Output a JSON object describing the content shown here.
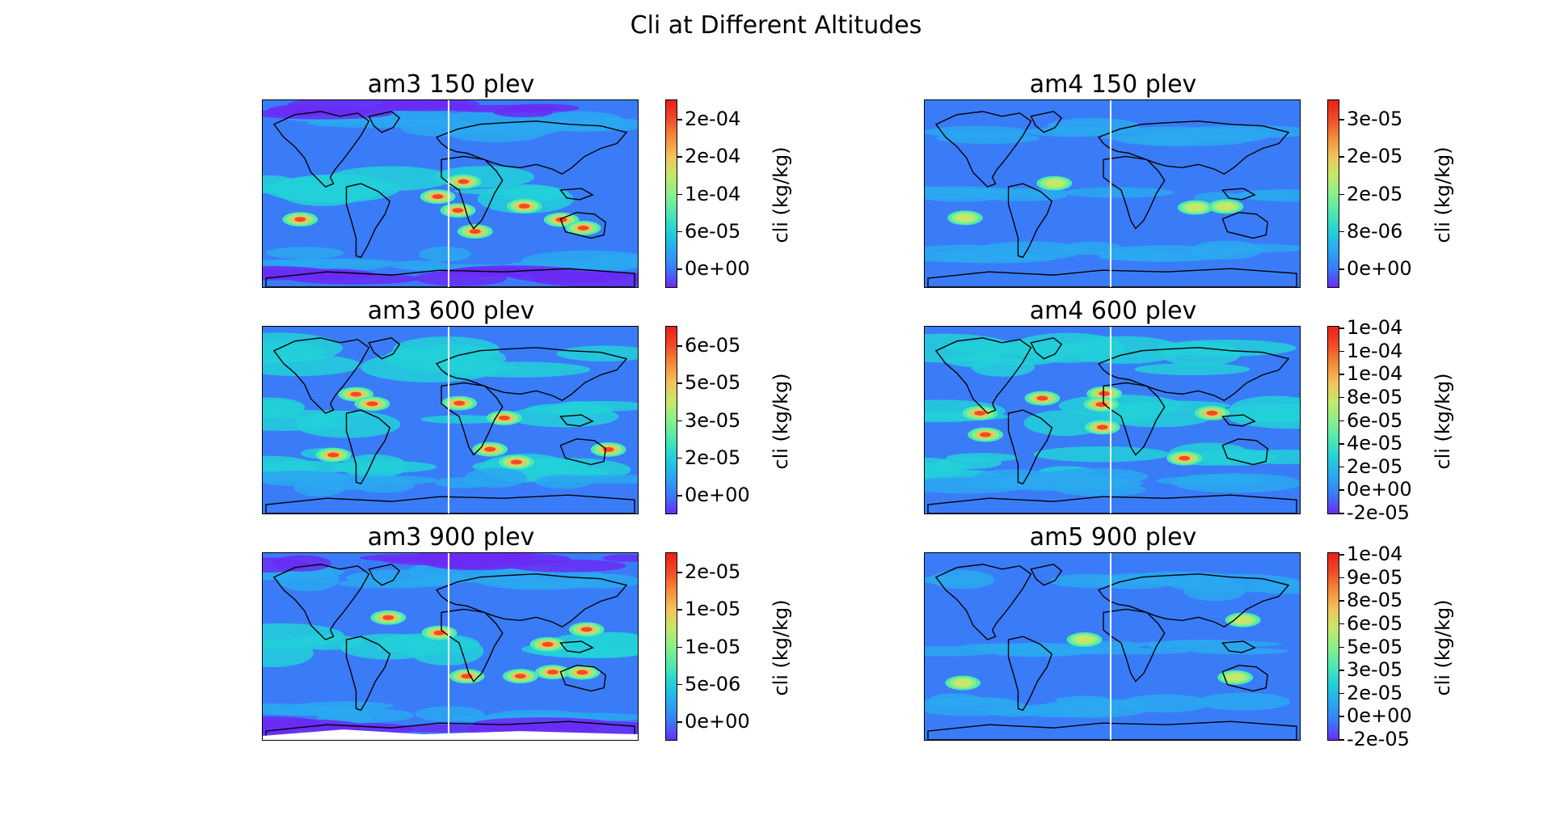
{
  "figure": {
    "title": "Cli at Different Altitudes"
  },
  "colors": {
    "palette": [
      "#6a2cf5",
      "#3a7cf7",
      "#2aa8f0",
      "#22d0d8",
      "#4fe8b0",
      "#8af086",
      "#c6e76a",
      "#f2c35a",
      "#f58c3a",
      "#ef4b26",
      "#e8201a"
    ],
    "missing": "#ffffff",
    "coastline": "#000000",
    "meridian_line": "#ffffff"
  },
  "chart_data": [
    {
      "type": "heatmap",
      "title": "am3 150 plev",
      "colorbar_label": "cli (kg/kg)",
      "colorbar_ticks": [
        "2e-04",
        "2e-04",
        "1e-04",
        "6e-05",
        "0e+00"
      ],
      "field_level": "high"
    },
    {
      "type": "heatmap",
      "title": "am4 150 plev",
      "colorbar_label": "cli (kg/kg)",
      "colorbar_ticks": [
        "3e-05",
        "2e-05",
        "2e-05",
        "8e-06",
        "0e+00"
      ],
      "field_level": "low"
    },
    {
      "type": "heatmap",
      "title": "am3 600 plev",
      "colorbar_label": "cli (kg/kg)",
      "colorbar_ticks": [
        "6e-05",
        "5e-05",
        "3e-05",
        "2e-05",
        "0e+00"
      ],
      "field_level": "mid"
    },
    {
      "type": "heatmap",
      "title": "am4 600 plev",
      "colorbar_label": "cli (kg/kg)",
      "colorbar_ticks": [
        "1e-04",
        "1e-04",
        "1e-04",
        "8e-05",
        "6e-05",
        "4e-05",
        "2e-05",
        "0e+00",
        "-2e-05"
      ],
      "field_level": "mid"
    },
    {
      "type": "heatmap",
      "title": "am3 900 plev",
      "colorbar_label": "cli (kg/kg)",
      "colorbar_ticks": [
        "2e-05",
        "1e-05",
        "1e-05",
        "5e-06",
        "0e+00"
      ],
      "field_level": "high"
    },
    {
      "type": "heatmap",
      "title": "am5 900 plev",
      "colorbar_label": "cli (kg/kg)",
      "colorbar_ticks": [
        "1e-04",
        "9e-05",
        "8e-05",
        "6e-05",
        "5e-05",
        "3e-05",
        "2e-05",
        "0e+00",
        "-2e-05"
      ],
      "field_level": "low"
    }
  ]
}
